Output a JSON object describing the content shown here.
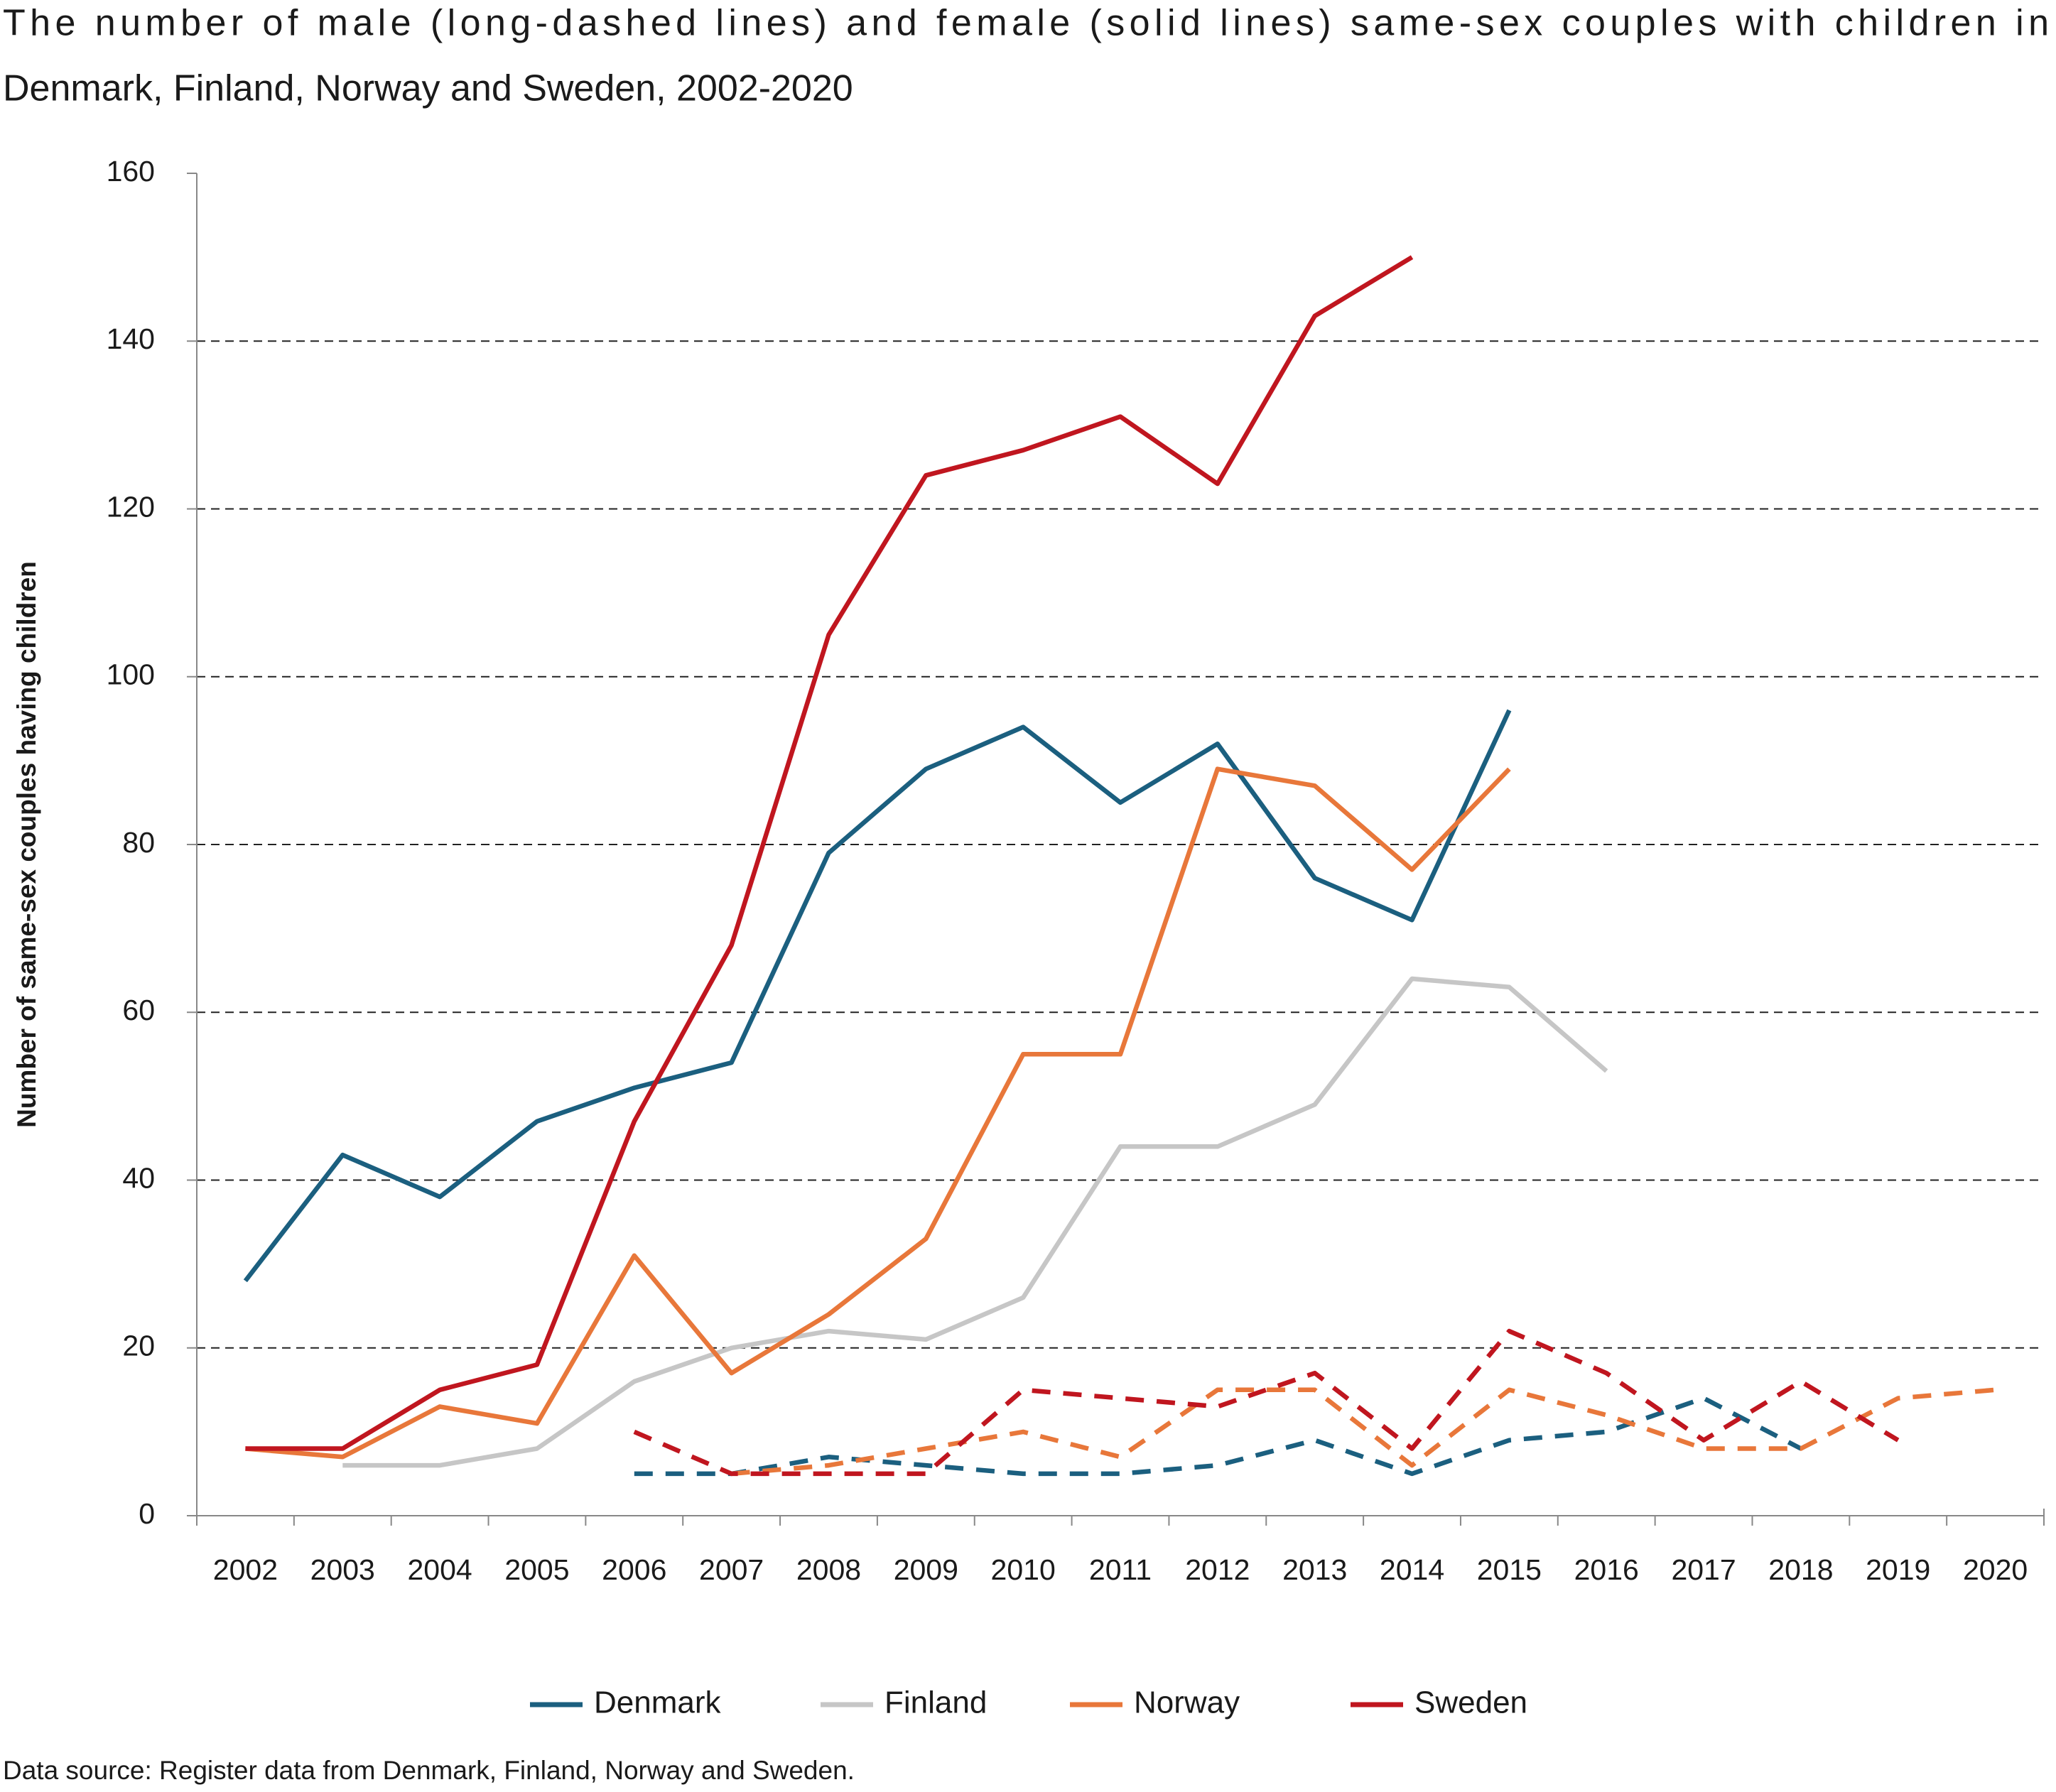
{
  "chart_data": {
    "type": "line",
    "title": [
      "The number of male (long-dashed lines) and female (solid lines) same-sex couples with children in",
      "Denmark, Finland, Norway and Sweden, 2002-2020"
    ],
    "ylabel": "Number of same-sex couples having children",
    "source": "Data source: Register data from Denmark, Finland, Norway and Sweden.",
    "categories": [
      "2002",
      "2003",
      "2004",
      "2005",
      "2006",
      "2007",
      "2008",
      "2009",
      "2010",
      "2011",
      "2012",
      "2013",
      "2014",
      "2015",
      "2016",
      "2017",
      "2018",
      "2019",
      "2020"
    ],
    "series": [
      {
        "name": "Denmark",
        "color": "#1b5f7f",
        "solid_values": [
          28,
          43,
          38,
          47,
          51,
          54,
          79,
          89,
          94,
          85,
          92,
          76,
          71,
          96,
          null,
          null,
          null,
          null,
          null
        ],
        "dashed_values": [
          null,
          null,
          null,
          null,
          5,
          5,
          7,
          6,
          5,
          5,
          6,
          9,
          5,
          9,
          10,
          14,
          8,
          null,
          null
        ]
      },
      {
        "name": "Finland",
        "color": "#c6c6c6",
        "solid_values": [
          null,
          6,
          6,
          8,
          16,
          20,
          22,
          21,
          26,
          44,
          44,
          49,
          64,
          63,
          53,
          null,
          null,
          null,
          null
        ]
      },
      {
        "name": "Norway",
        "color": "#e8773a",
        "solid_values": [
          8,
          7,
          13,
          11,
          31,
          17,
          24,
          33,
          55,
          55,
          89,
          87,
          77,
          89,
          null,
          null,
          null,
          null,
          null
        ],
        "dashed_values": [
          null,
          null,
          null,
          null,
          null,
          5,
          6,
          8,
          10,
          7,
          15,
          15,
          6,
          15,
          12,
          8,
          8,
          14,
          15
        ]
      },
      {
        "name": "Sweden",
        "color": "#c0161f",
        "solid_values": [
          8,
          8,
          15,
          18,
          47,
          68,
          105,
          124,
          127,
          131,
          123,
          143,
          150,
          null,
          null,
          null,
          null,
          null,
          null
        ],
        "dashed_values": [
          null,
          null,
          null,
          null,
          10,
          5,
          5,
          5,
          15,
          14,
          13,
          17,
          8,
          22,
          17,
          9,
          16,
          9,
          null
        ]
      }
    ],
    "ylim": [
      0,
      160
    ],
    "yticks": [
      0,
      20,
      40,
      60,
      80,
      100,
      120,
      140,
      160
    ],
    "grid": true
  }
}
